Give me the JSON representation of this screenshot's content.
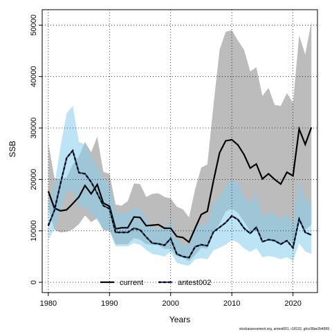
{
  "chart_data": {
    "type": "line",
    "title": "",
    "xlabel": "Years",
    "ylabel": "SSB",
    "xlim": [
      1979,
      2024
    ],
    "ylim": [
      -2000,
      53000
    ],
    "x_ticks": [
      1980,
      1990,
      2000,
      2010,
      2020
    ],
    "y_ticks": [
      0,
      10000,
      20000,
      30000,
      40000,
      50000
    ],
    "grid": true,
    "legend_position": "bottom",
    "footnote": "stockassessment.org, antest001, r18132, git:e38ae2b4999",
    "x": [
      1980,
      1981,
      1982,
      1983,
      1984,
      1985,
      1986,
      1987,
      1988,
      1989,
      1990,
      1991,
      1992,
      1993,
      1994,
      1995,
      1996,
      1997,
      1998,
      1999,
      2000,
      2001,
      2002,
      2003,
      2004,
      2005,
      2006,
      2007,
      2008,
      2009,
      2010,
      2011,
      2012,
      2013,
      2014,
      2015,
      2016,
      2017,
      2018,
      2019,
      2020,
      2021,
      2022,
      2023
    ],
    "series": [
      {
        "name": "current",
        "color": "#000000",
        "band_color": "#b0b0b0",
        "line_style": "solid",
        "values": [
          17700,
          14400,
          13900,
          14100,
          15300,
          16600,
          18800,
          17200,
          19000,
          15400,
          14800,
          10400,
          10600,
          10600,
          12700,
          12600,
          11000,
          11100,
          11200,
          10500,
          10500,
          8900,
          8700,
          7800,
          10500,
          13200,
          13800,
          19700,
          25200,
          27500,
          27700,
          26700,
          24800,
          22200,
          23000,
          20100,
          21100,
          20000,
          19100,
          21400,
          20700,
          29800,
          26800,
          30100
        ],
        "lower": [
          14400,
          10200,
          9700,
          9800,
          10300,
          11300,
          13000,
          11700,
          12500,
          10100,
          10100,
          7400,
          7400,
          7400,
          8600,
          8300,
          7400,
          7300,
          7200,
          6500,
          6500,
          5100,
          4800,
          4100,
          5300,
          6700,
          6500,
          9600,
          11400,
          13800,
          14300,
          13500,
          11800,
          9900,
          10100,
          8300,
          8500,
          7900,
          7200,
          8400,
          7400,
          11900,
          10200,
          11200
        ],
        "upper": [
          27200,
          20300,
          20000,
          20400,
          22900,
          24500,
          27300,
          25300,
          28300,
          21500,
          21100,
          15100,
          14900,
          15800,
          19200,
          19100,
          16600,
          17200,
          17300,
          16600,
          16300,
          14700,
          14200,
          12600,
          18100,
          22300,
          22900,
          34400,
          45200,
          48700,
          49000,
          47000,
          45200,
          41000,
          41800,
          36200,
          37800,
          34500,
          34300,
          36800,
          34900,
          48000,
          44300,
          50700
        ]
      },
      {
        "name": "antest002",
        "color": "#1f4e79",
        "band_color": "#87ceeb",
        "line_style": "dashed",
        "values": [
          11000,
          14000,
          19200,
          24200,
          25600,
          21300,
          21100,
          19500,
          17300,
          14900,
          14300,
          9700,
          9700,
          9700,
          10500,
          10200,
          8800,
          7600,
          7500,
          7200,
          8500,
          5500,
          5000,
          4800,
          6900,
          7300,
          7100,
          9800,
          10700,
          11600,
          12900,
          12200,
          10500,
          9500,
          10700,
          7900,
          8300,
          8100,
          7400,
          8100,
          6700,
          12300,
          9700,
          9200
        ],
        "lower": [
          8200,
          10400,
          14000,
          17700,
          17800,
          14700,
          14600,
          13500,
          12000,
          10400,
          10100,
          7000,
          7000,
          7000,
          7600,
          7300,
          6300,
          5500,
          5300,
          5000,
          5900,
          3800,
          3400,
          3200,
          4500,
          4700,
          4500,
          6200,
          6700,
          7300,
          8200,
          7700,
          6600,
          5900,
          6600,
          4900,
          5100,
          4900,
          4500,
          4900,
          4100,
          7600,
          6000,
          5500
        ],
        "upper": [
          15000,
          18800,
          26400,
          32900,
          34300,
          27300,
          26800,
          24600,
          22600,
          20000,
          19000,
          13400,
          13500,
          13400,
          14500,
          14200,
          12300,
          10500,
          10500,
          10300,
          12000,
          8300,
          7400,
          7200,
          10600,
          11300,
          11300,
          15200,
          16600,
          18500,
          20000,
          19200,
          16700,
          15200,
          17400,
          12800,
          13600,
          13300,
          12300,
          13400,
          11300,
          19700,
          16100,
          16000
        ]
      }
    ]
  }
}
